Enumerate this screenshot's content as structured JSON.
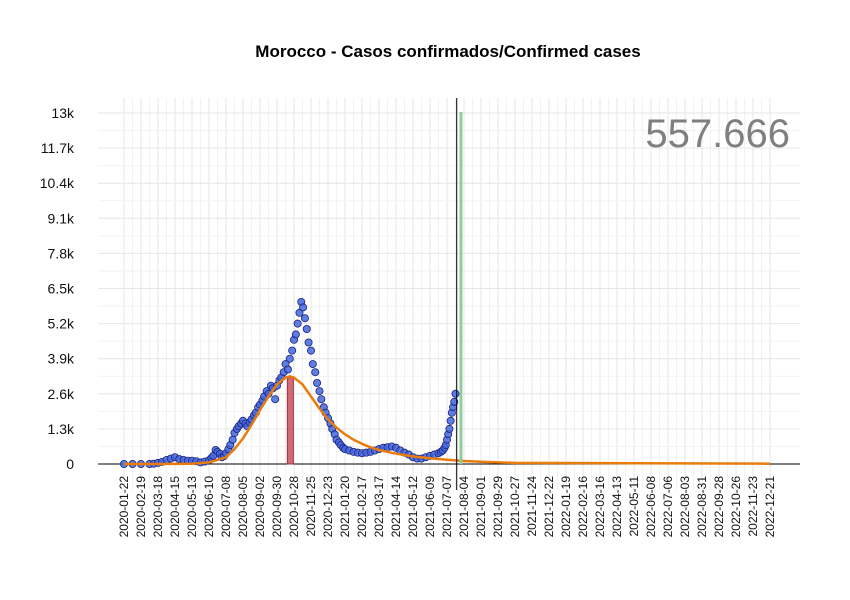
{
  "chart_data": {
    "type": "scatter",
    "title": "Morocco - Casos confirmados/Confirmed cases",
    "total_label": "557.666",
    "xlabel": "",
    "ylabel": "",
    "x_start": "2020-01-22",
    "x_end": "2022-12-21",
    "ylim": [
      -1000,
      13700
    ],
    "y_ticks": [
      {
        "value": 0,
        "label": "0"
      },
      {
        "value": 1300,
        "label": "1.3k"
      },
      {
        "value": 2600,
        "label": "2.6k"
      },
      {
        "value": 3900,
        "label": "3.9k"
      },
      {
        "value": 5200,
        "label": "5.2k"
      },
      {
        "value": 6500,
        "label": "6.5k"
      },
      {
        "value": 7800,
        "label": "7.8k"
      },
      {
        "value": 9100,
        "label": "9.1k"
      },
      {
        "value": 10400,
        "label": "10.4k"
      },
      {
        "value": 11700,
        "label": "11.7k"
      },
      {
        "value": 13000,
        "label": "13k"
      }
    ],
    "x_ticks": [
      "2020-01-22",
      "2020-02-19",
      "2020-03-18",
      "2020-04-15",
      "2020-05-13",
      "2020-06-10",
      "2020-07-08",
      "2020-08-05",
      "2020-09-02",
      "2020-09-30",
      "2020-10-28",
      "2020-11-25",
      "2020-12-23",
      "2021-01-20",
      "2021-02-17",
      "2021-03-17",
      "2021-04-14",
      "2021-05-12",
      "2021-06-09",
      "2021-07-07",
      "2021-08-04",
      "2021-09-01",
      "2021-09-29",
      "2021-10-27",
      "2021-11-24",
      "2021-12-22",
      "2022-01-19",
      "2022-02-16",
      "2022-03-16",
      "2022-04-13",
      "2022-05-11",
      "2022-06-08",
      "2022-07-06",
      "2022-08-03",
      "2022-08-31",
      "2022-09-28",
      "2022-10-26",
      "2022-11-23",
      "2022-12-21"
    ],
    "grid": true,
    "today_line": "2021-07-23",
    "green_line": "2021-07-30",
    "peak_bar": {
      "x_start": "2020-10-17",
      "x_end": "2020-10-21",
      "value": 3200
    },
    "series": [
      {
        "kind": "daily-points",
        "color": "#4466dd",
        "edge_color": "#1a237e",
        "x": [
          "2020-01-22",
          "2020-02-05",
          "2020-02-19",
          "2020-03-04",
          "2020-03-11",
          "2020-03-18",
          "2020-03-25",
          "2020-04-01",
          "2020-04-08",
          "2020-04-15",
          "2020-04-22",
          "2020-04-29",
          "2020-05-06",
          "2020-05-13",
          "2020-05-20",
          "2020-05-27",
          "2020-06-03",
          "2020-06-10",
          "2020-06-14",
          "2020-06-17",
          "2020-06-21",
          "2020-06-24",
          "2020-06-28",
          "2020-07-01",
          "2020-07-05",
          "2020-07-08",
          "2020-07-12",
          "2020-07-15",
          "2020-07-19",
          "2020-07-22",
          "2020-07-26",
          "2020-07-29",
          "2020-08-02",
          "2020-08-05",
          "2020-08-09",
          "2020-08-12",
          "2020-08-16",
          "2020-08-19",
          "2020-08-23",
          "2020-08-26",
          "2020-08-30",
          "2020-09-02",
          "2020-09-06",
          "2020-09-09",
          "2020-09-13",
          "2020-09-16",
          "2020-09-20",
          "2020-09-23",
          "2020-09-27",
          "2020-09-30",
          "2020-10-04",
          "2020-10-07",
          "2020-10-11",
          "2020-10-14",
          "2020-10-18",
          "2020-10-21",
          "2020-10-25",
          "2020-10-28",
          "2020-10-31",
          "2020-11-03",
          "2020-11-06",
          "2020-11-09",
          "2020-11-12",
          "2020-11-15",
          "2020-11-18",
          "2020-11-21",
          "2020-11-25",
          "2020-11-28",
          "2020-12-02",
          "2020-12-05",
          "2020-12-09",
          "2020-12-12",
          "2020-12-16",
          "2020-12-19",
          "2020-12-23",
          "2020-12-27",
          "2020-12-30",
          "2021-01-03",
          "2021-01-06",
          "2021-01-10",
          "2021-01-13",
          "2021-01-17",
          "2021-01-20",
          "2021-01-27",
          "2021-02-03",
          "2021-02-10",
          "2021-02-17",
          "2021-02-24",
          "2021-03-03",
          "2021-03-10",
          "2021-03-17",
          "2021-03-24",
          "2021-03-31",
          "2021-04-07",
          "2021-04-14",
          "2021-04-21",
          "2021-04-28",
          "2021-05-05",
          "2021-05-12",
          "2021-05-19",
          "2021-05-26",
          "2021-06-02",
          "2021-06-09",
          "2021-06-16",
          "2021-06-23",
          "2021-06-27",
          "2021-06-30",
          "2021-07-03",
          "2021-07-05",
          "2021-07-07",
          "2021-07-09",
          "2021-07-11",
          "2021-07-13",
          "2021-07-15",
          "2021-07-17",
          "2021-07-19",
          "2021-07-21"
        ],
        "values": [
          0,
          0,
          0,
          0,
          10,
          40,
          80,
          150,
          200,
          250,
          180,
          150,
          120,
          120,
          100,
          60,
          90,
          140,
          220,
          300,
          520,
          450,
          380,
          250,
          300,
          400,
          550,
          700,
          900,
          1150,
          1300,
          1400,
          1500,
          1600,
          1500,
          1400,
          1550,
          1650,
          1800,
          1900,
          2100,
          2200,
          2350,
          2500,
          2700,
          2600,
          2900,
          2800,
          2400,
          2900,
          3100,
          3200,
          3400,
          3700,
          3500,
          3900,
          4200,
          4600,
          4800,
          5200,
          5600,
          6000,
          5800,
          5400,
          5000,
          4500,
          4200,
          3700,
          3400,
          3000,
          2700,
          2400,
          2100,
          1900,
          1700,
          1500,
          1300,
          1100,
          900,
          800,
          700,
          600,
          550,
          500,
          450,
          420,
          400,
          420,
          450,
          500,
          550,
          600,
          620,
          650,
          600,
          500,
          420,
          350,
          250,
          200,
          200,
          250,
          300,
          350,
          400,
          450,
          500,
          600,
          700,
          900,
          1100,
          1300,
          1600,
          1900,
          2100,
          2300,
          2600
        ]
      },
      {
        "kind": "fitted-curve",
        "color": "#e87d0e",
        "x": [
          "2020-01-22",
          "2020-03-18",
          "2020-05-13",
          "2020-06-10",
          "2020-07-08",
          "2020-07-22",
          "2020-08-05",
          "2020-08-19",
          "2020-09-02",
          "2020-09-16",
          "2020-09-30",
          "2020-10-14",
          "2020-10-21",
          "2020-10-28",
          "2020-11-11",
          "2020-11-25",
          "2020-12-09",
          "2020-12-23",
          "2021-01-06",
          "2021-01-20",
          "2021-02-03",
          "2021-02-17",
          "2021-03-03",
          "2021-03-17",
          "2021-04-14",
          "2021-05-12",
          "2021-06-09",
          "2021-07-07",
          "2021-08-04",
          "2021-09-01",
          "2021-10-27",
          "2022-12-21"
        ],
        "values": [
          0,
          0,
          10,
          60,
          250,
          550,
          950,
          1450,
          2000,
          2500,
          2950,
          3200,
          3250,
          3200,
          2950,
          2500,
          2050,
          1650,
          1350,
          1100,
          900,
          750,
          620,
          520,
          380,
          280,
          210,
          160,
          110,
          80,
          40,
          10
        ]
      }
    ]
  }
}
